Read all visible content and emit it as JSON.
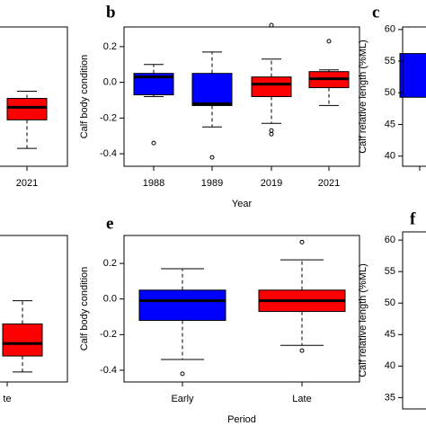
{
  "chart_data": [
    {
      "type": "box",
      "categories": [
        "2021"
      ],
      "ylim": [
        -0.47,
        0.31
      ],
      "boxes": [
        {
          "color": "#ff0000",
          "whisker_low": -0.37,
          "q1": -0.21,
          "median": -0.14,
          "q3": -0.09,
          "whisker_high": -0.05,
          "outliers": []
        }
      ]
    },
    {
      "type": "box",
      "title": "b",
      "ylabel": "Calf body condition",
      "xlabel": "Year",
      "categories": [
        "1988",
        "1989",
        "2019",
        "2021"
      ],
      "ylim": [
        -0.47,
        0.31
      ],
      "yticks": [
        -0.4,
        -0.2,
        {
          "value": 0,
          "label": "0.0"
        },
        0.2
      ],
      "boxes": [
        {
          "color": "#0000ff",
          "whisker_low": -0.08,
          "q1": -0.07,
          "median": 0.03,
          "q3": 0.05,
          "whisker_high": 0.1,
          "outliers": [
            -0.34
          ]
        },
        {
          "color": "#0000ff",
          "whisker_low": -0.25,
          "q1": -0.13,
          "median": -0.12,
          "q3": 0.05,
          "whisker_high": 0.17,
          "outliers": [
            -0.42
          ]
        },
        {
          "color": "#ff0000",
          "whisker_low": -0.23,
          "q1": -0.08,
          "median": -0.01,
          "q3": 0.03,
          "whisker_high": 0.13,
          "outliers": [
            -0.27,
            -0.29,
            0.32
          ]
        },
        {
          "color": "#ff0000",
          "whisker_low": -0.13,
          "q1": -0.03,
          "median": 0.02,
          "q3": 0.06,
          "whisker_high": 0.07,
          "outliers": [
            0.23
          ]
        }
      ]
    },
    {
      "type": "box",
      "title": "c",
      "ylabel": "Calf relative length (%ML)",
      "categories": [
        null
      ],
      "ylim": [
        38.4,
        60.4
      ],
      "yticks": [
        40,
        45,
        50,
        55,
        60
      ],
      "boxes": [
        {
          "color": "#0000ff",
          "q1": 49.3,
          "q3": 56.2,
          "outliers": []
        }
      ]
    },
    {
      "type": "box",
      "categories": [
        "te"
      ],
      "ylim": [
        -0.466,
        0.357
      ],
      "boxes": [
        {
          "color": "#ff0000",
          "whisker_low": -0.41,
          "q1": -0.32,
          "median": -0.25,
          "q3": -0.14,
          "whisker_high": -0.01,
          "outliers": []
        }
      ]
    },
    {
      "type": "box",
      "title": "e",
      "ylabel": "Calf body condition",
      "xlabel": "Period",
      "categories": [
        "Early",
        "Late"
      ],
      "ylim": [
        -0.466,
        0.357
      ],
      "yticks": [
        -0.4,
        -0.2,
        {
          "value": 0,
          "label": "0.0"
        },
        0.2
      ],
      "boxes": [
        {
          "color": "#0000ff",
          "whisker_low": -0.34,
          "q1": -0.12,
          "median": -0.01,
          "q3": 0.05,
          "whisker_high": 0.17,
          "outliers": [
            -0.42
          ]
        },
        {
          "color": "#ff0000",
          "whisker_low": -0.26,
          "q1": -0.07,
          "median": -0.01,
          "q3": 0.05,
          "whisker_high": 0.22,
          "outliers": [
            0.32,
            -0.29
          ]
        }
      ]
    },
    {
      "type": "box",
      "title": "f",
      "ylabel": "Calf relative length (%ML)",
      "categories": [],
      "ylim": [
        33.2,
        61.3
      ],
      "yticks": [
        35,
        40,
        45,
        50,
        55,
        60
      ],
      "boxes": []
    }
  ]
}
